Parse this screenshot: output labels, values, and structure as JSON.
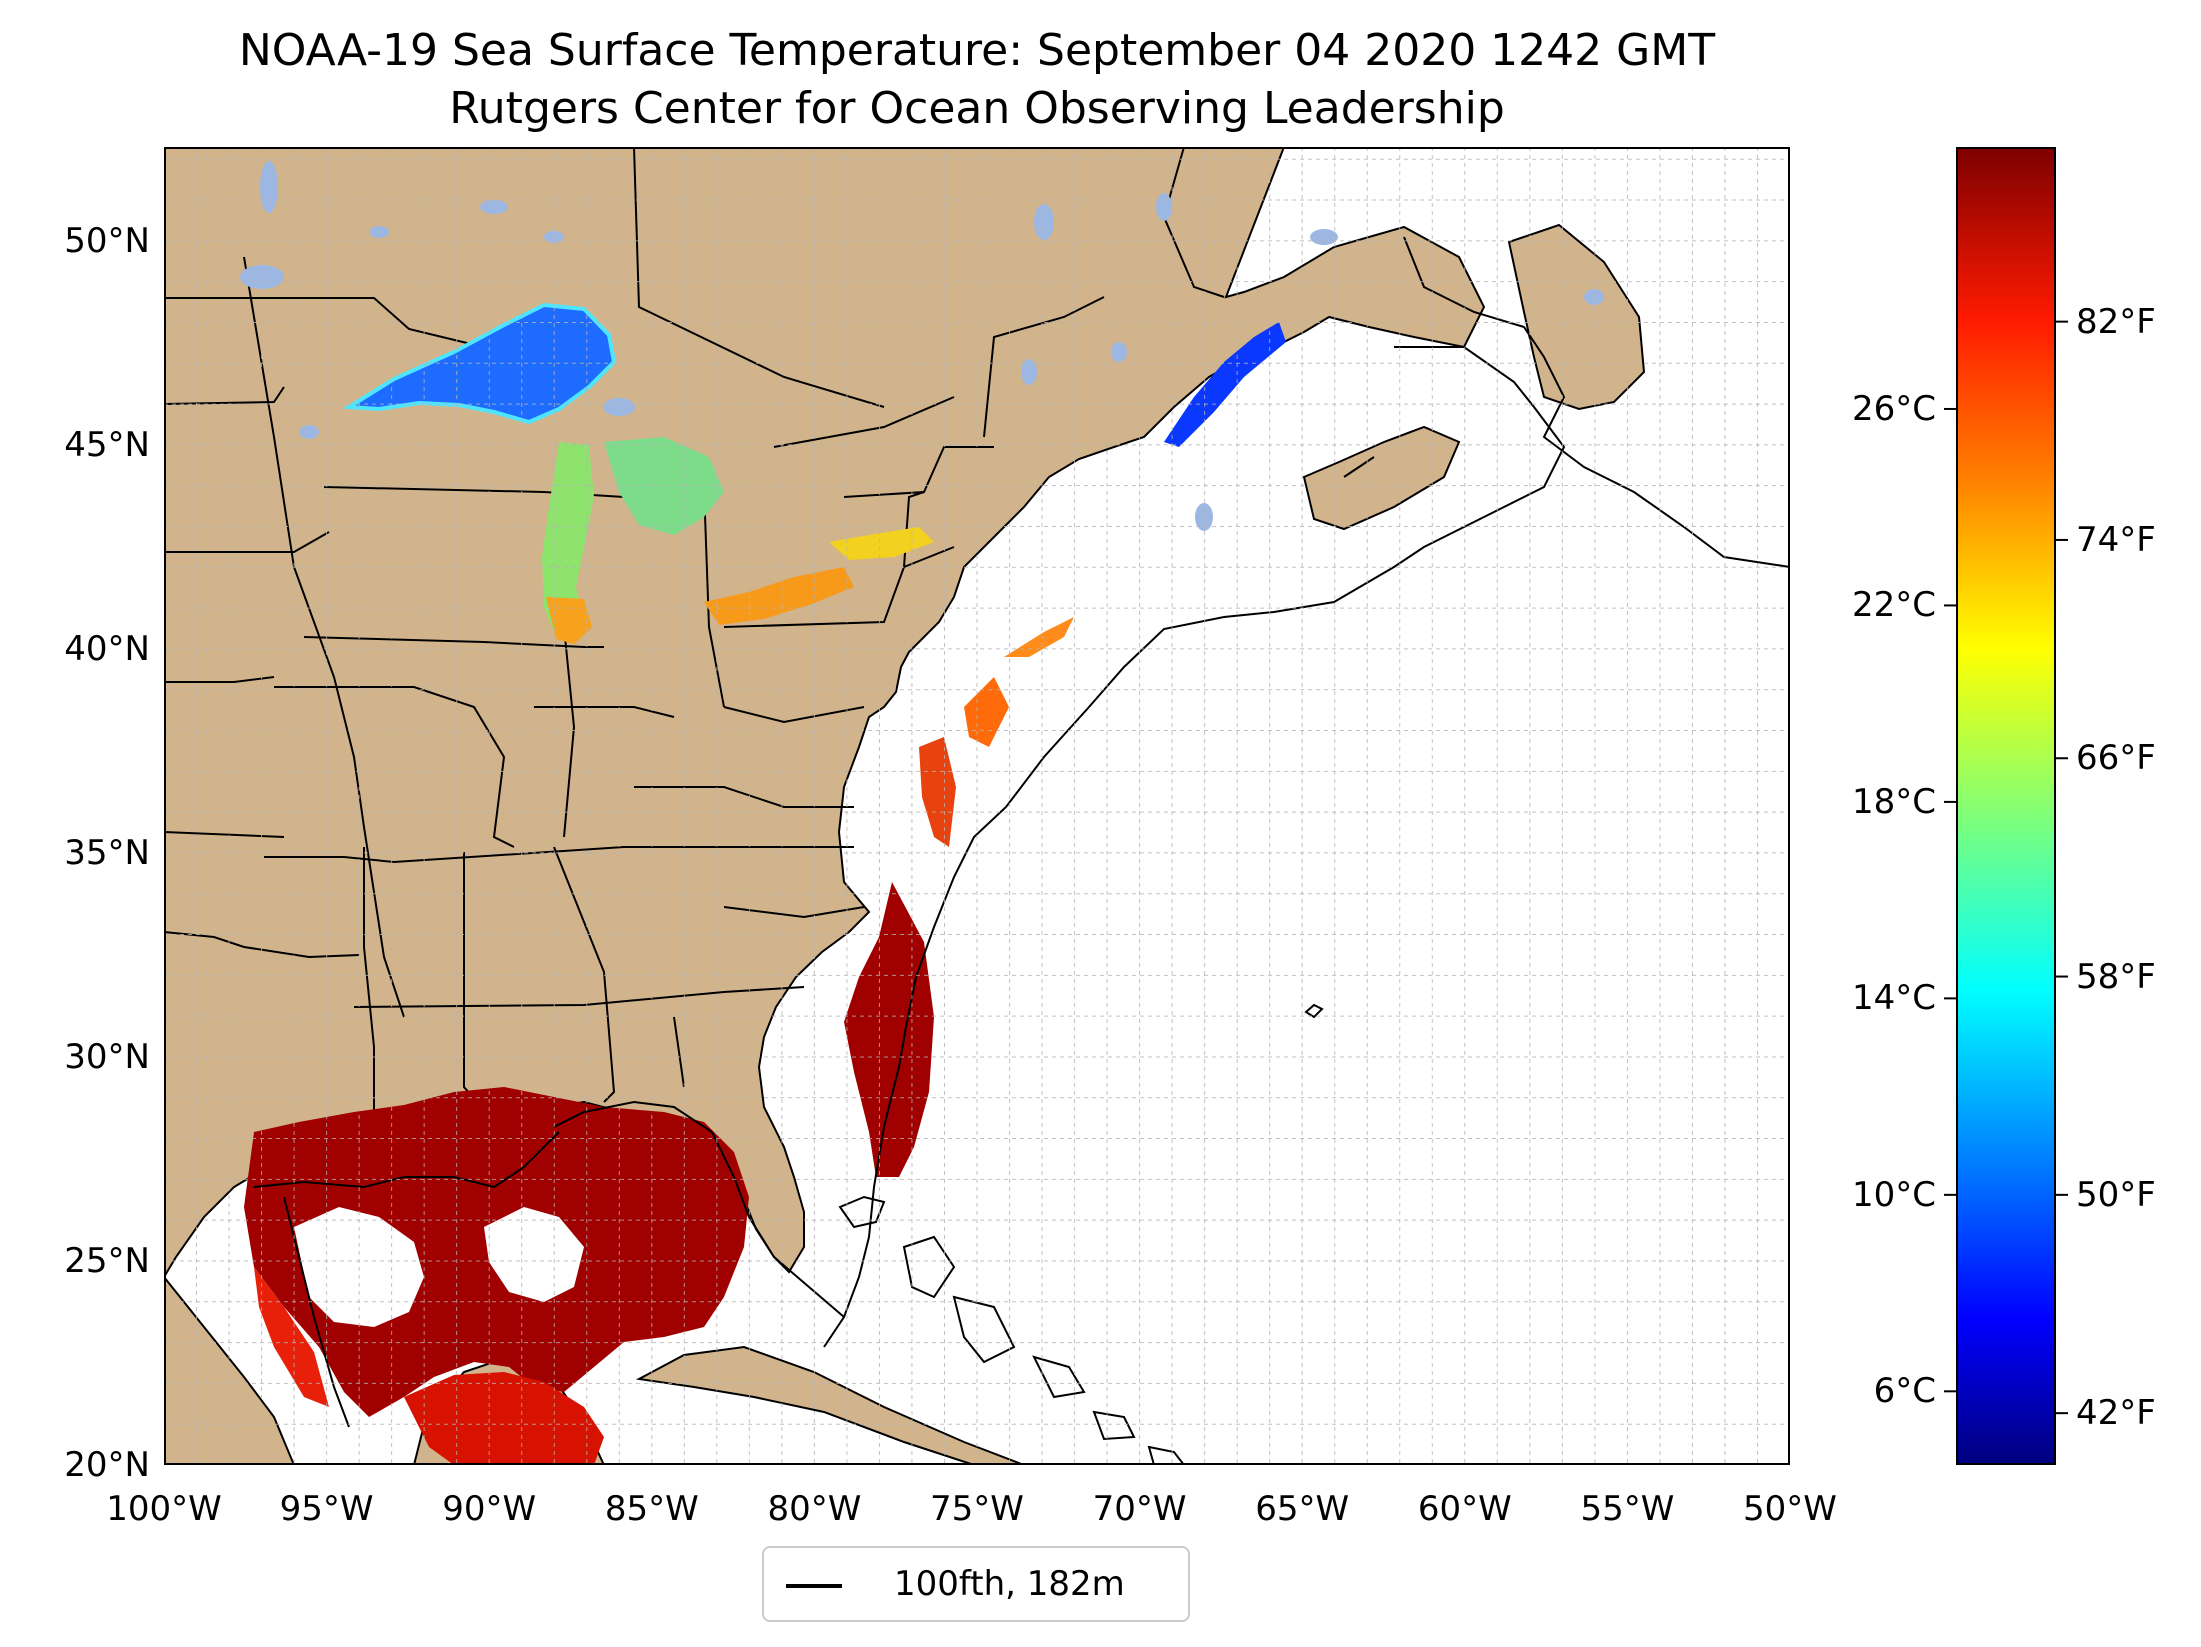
{
  "title": {
    "line1": "NOAA-19 Sea Surface Temperature: September 04 2020 1242 GMT",
    "line2": "Rutgers Center for Ocean Observing Leadership"
  },
  "map": {
    "lon_range": [
      -100,
      -50
    ],
    "lat_range": [
      20,
      52.3
    ],
    "gridlines": true,
    "colors": {
      "land": "#d2b48c",
      "lakes": "#9db7e3",
      "ocean_no_data": "#ffffff",
      "grid": "#b4b4b4",
      "coast": "#000000"
    },
    "lon_ticks": [
      {
        "value": -100,
        "label": "100°W"
      },
      {
        "value": -95,
        "label": "95°W"
      },
      {
        "value": -90,
        "label": "90°W"
      },
      {
        "value": -85,
        "label": "85°W"
      },
      {
        "value": -80,
        "label": "80°W"
      },
      {
        "value": -75,
        "label": "75°W"
      },
      {
        "value": -70,
        "label": "70°W"
      },
      {
        "value": -65,
        "label": "65°W"
      },
      {
        "value": -60,
        "label": "60°W"
      },
      {
        "value": -55,
        "label": "55°W"
      },
      {
        "value": -50,
        "label": "50°W"
      }
    ],
    "lat_ticks": [
      {
        "value": 20,
        "label": "20°N"
      },
      {
        "value": 25,
        "label": "25°N"
      },
      {
        "value": 30,
        "label": "30°N"
      },
      {
        "value": 35,
        "label": "35°N"
      },
      {
        "value": 40,
        "label": "40°N"
      },
      {
        "value": 45,
        "label": "45°N"
      },
      {
        "value": 50,
        "label": "50°N"
      }
    ]
  },
  "colorbar": {
    "min_f": 40.1,
    "max_f": 88.4,
    "colormap": "jet",
    "fahrenheit_ticks": [
      {
        "value": 42,
        "label": "42°F"
      },
      {
        "value": 50,
        "label": "50°F"
      },
      {
        "value": 58,
        "label": "58°F"
      },
      {
        "value": 66,
        "label": "66°F"
      },
      {
        "value": 74,
        "label": "74°F"
      },
      {
        "value": 82,
        "label": "82°F"
      }
    ],
    "celsius_ticks": [
      {
        "value": 6,
        "label": "6°C"
      },
      {
        "value": 10,
        "label": "10°C"
      },
      {
        "value": 14,
        "label": "14°C"
      },
      {
        "value": 18,
        "label": "18°C"
      },
      {
        "value": 22,
        "label": "22°C"
      },
      {
        "value": 26,
        "label": "26°C"
      }
    ]
  },
  "legend": {
    "label": "100fth, 182m",
    "line_color": "#000000"
  }
}
